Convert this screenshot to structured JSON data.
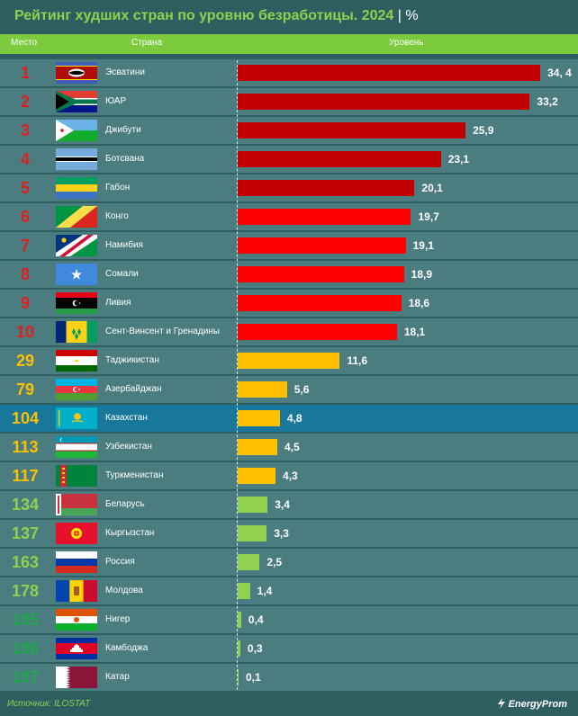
{
  "header": {
    "title": "Рейтинг худших стран по уровню безработицы. 2024",
    "separator": "|",
    "unit": "%",
    "col_rank": "Место",
    "col_country": "Страна",
    "col_level": "Уровень"
  },
  "colors": {
    "background": "#2f5e61",
    "row": "#4b7c7f",
    "highlight_row": "#18789c",
    "accent_green": "#7ccb3f",
    "tier1_dark_red": "#c00000",
    "tier2_red": "#ff0000",
    "tier3_yellow": "#ffc000",
    "tier4_green": "#92d050"
  },
  "chart_data": {
    "type": "bar",
    "orientation": "horizontal",
    "title": "Рейтинг худших стран по уровню безработицы. 2024",
    "unit": "%",
    "xlim": [
      0,
      35
    ],
    "grid": false,
    "rows": [
      {
        "rank": "1",
        "country": "Эсватини",
        "value": 34.4,
        "label": "34, 4",
        "flag": "flag-eswatini-icon",
        "bar_color": "#c00000",
        "rank_color": "#e02020"
      },
      {
        "rank": "2",
        "country": "ЮАР",
        "value": 33.2,
        "label": "33,2",
        "flag": "flag-south-africa-icon",
        "bar_color": "#c00000",
        "rank_color": "#e02020"
      },
      {
        "rank": "3",
        "country": "Джибути",
        "value": 25.9,
        "label": "25,9",
        "flag": "flag-djibouti-icon",
        "bar_color": "#c00000",
        "rank_color": "#e02020"
      },
      {
        "rank": "4",
        "country": "Ботсвана",
        "value": 23.1,
        "label": "23,1",
        "flag": "flag-botswana-icon",
        "bar_color": "#c00000",
        "rank_color": "#e02020"
      },
      {
        "rank": "5",
        "country": "Габон",
        "value": 20.1,
        "label": "20,1",
        "flag": "flag-gabon-icon",
        "bar_color": "#c00000",
        "rank_color": "#e02020"
      },
      {
        "rank": "6",
        "country": "Конго",
        "value": 19.7,
        "label": "19,7",
        "flag": "flag-congo-icon",
        "bar_color": "#ff0000",
        "rank_color": "#e02020"
      },
      {
        "rank": "7",
        "country": "Намибия",
        "value": 19.1,
        "label": "19,1",
        "flag": "flag-namibia-icon",
        "bar_color": "#ff0000",
        "rank_color": "#e02020"
      },
      {
        "rank": "8",
        "country": "Сомали",
        "value": 18.9,
        "label": "18,9",
        "flag": "flag-somalia-icon",
        "bar_color": "#ff0000",
        "rank_color": "#e02020"
      },
      {
        "rank": "9",
        "country": "Ливия",
        "value": 18.6,
        "label": "18,6",
        "flag": "flag-libya-icon",
        "bar_color": "#ff0000",
        "rank_color": "#e02020"
      },
      {
        "rank": "10",
        "country": "Сент-Винсент и Гренадины",
        "value": 18.1,
        "label": "18,1",
        "flag": "flag-saint-vincent-icon",
        "bar_color": "#ff0000",
        "rank_color": "#e02020"
      },
      {
        "rank": "29",
        "country": "Таджикистан",
        "value": 11.6,
        "label": "11,6",
        "flag": "flag-tajikistan-icon",
        "bar_color": "#ffc000",
        "rank_color": "#ffc000"
      },
      {
        "rank": "79",
        "country": "Азербайджан",
        "value": 5.6,
        "label": "5,6",
        "flag": "flag-azerbaijan-icon",
        "bar_color": "#ffc000",
        "rank_color": "#ffc000"
      },
      {
        "rank": "104",
        "country": "Казахстан",
        "value": 4.8,
        "label": "4,8",
        "flag": "flag-kazakhstan-icon",
        "bar_color": "#ffc000",
        "rank_color": "#ffc000",
        "highlight": true
      },
      {
        "rank": "113",
        "country": "Узбекистан",
        "value": 4.5,
        "label": "4,5",
        "flag": "flag-uzbekistan-icon",
        "bar_color": "#ffc000",
        "rank_color": "#ffc000"
      },
      {
        "rank": "117",
        "country": "Туркменистан",
        "value": 4.3,
        "label": "4,3",
        "flag": "flag-turkmenistan-icon",
        "bar_color": "#ffc000",
        "rank_color": "#ffc000"
      },
      {
        "rank": "134",
        "country": "Беларусь",
        "value": 3.4,
        "label": "3,4",
        "flag": "flag-belarus-icon",
        "bar_color": "#92d050",
        "rank_color": "#8fd14f"
      },
      {
        "rank": "137",
        "country": "Кыргызстан",
        "value": 3.3,
        "label": "3,3",
        "flag": "flag-kyrgyzstan-icon",
        "bar_color": "#92d050",
        "rank_color": "#8fd14f"
      },
      {
        "rank": "163",
        "country": "Россия",
        "value": 2.5,
        "label": "2,5",
        "flag": "flag-russia-icon",
        "bar_color": "#92d050",
        "rank_color": "#8fd14f"
      },
      {
        "rank": "178",
        "country": "Молдова",
        "value": 1.4,
        "label": "1,4",
        "flag": "flag-moldova-icon",
        "bar_color": "#92d050",
        "rank_color": "#8fd14f"
      },
      {
        "rank": "185",
        "country": "Нигер",
        "value": 0.4,
        "label": "0,4",
        "flag": "flag-niger-icon",
        "bar_color": "#92d050",
        "rank_color": "#1fa84a"
      },
      {
        "rank": "186",
        "country": "Камбоджа",
        "value": 0.3,
        "label": "0,3",
        "flag": "flag-cambodia-icon",
        "bar_color": "#92d050",
        "rank_color": "#1fa84a"
      },
      {
        "rank": "187",
        "country": "Катар",
        "value": 0.1,
        "label": "0,1",
        "flag": "flag-qatar-icon",
        "bar_color": "#92d050",
        "rank_color": "#1fa84a"
      }
    ]
  },
  "footer": {
    "source": "Источник: ILOSTAT",
    "logo": "EnergyProm"
  }
}
